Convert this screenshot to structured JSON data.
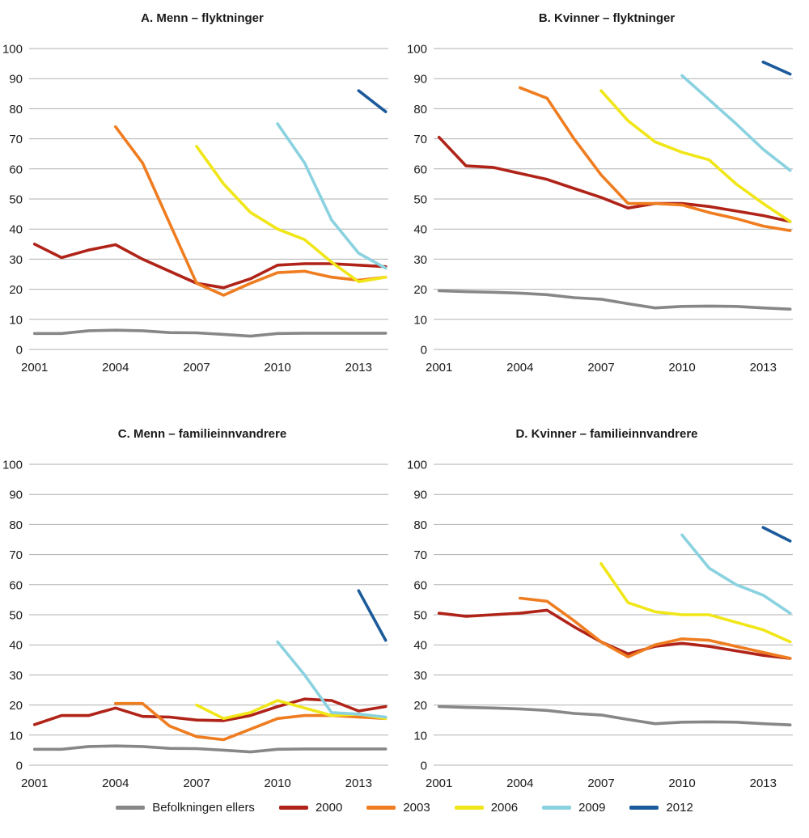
{
  "legend": {
    "items": [
      {
        "label": "Befolkningen ellers",
        "color": "#878787"
      },
      {
        "label": "2000",
        "color": "#b02318"
      },
      {
        "label": "2003",
        "color": "#ef7d20"
      },
      {
        "label": "2006",
        "color": "#f0e618"
      },
      {
        "label": "2009",
        "color": "#8ad2e0"
      },
      {
        "label": "2012",
        "color": "#1b5a9b"
      }
    ]
  },
  "chart_data": [
    {
      "type": "line",
      "title": "A. Menn – flyktninger",
      "xlabel": "",
      "ylabel": "",
      "xlim": [
        2000.8,
        2014.1
      ],
      "ylim": [
        0,
        100
      ],
      "yticks": [
        0,
        10,
        20,
        30,
        40,
        50,
        60,
        70,
        80,
        90,
        100
      ],
      "xticks": [
        2001,
        2004,
        2007,
        2010,
        2013
      ],
      "grid": "horizontal",
      "legend_position": "shared-bottom",
      "series": [
        {
          "name": "Befolkningen ellers",
          "color": "#878787",
          "x": [
            2001,
            2002,
            2003,
            2004,
            2005,
            2006,
            2007,
            2008,
            2009,
            2010,
            2011,
            2012,
            2013,
            2014
          ],
          "y": [
            5.3,
            5.3,
            6.2,
            6.4,
            6.2,
            5.6,
            5.5,
            5.0,
            4.4,
            5.3,
            5.4,
            5.4,
            5.4,
            5.4
          ]
        },
        {
          "name": "2000",
          "color": "#b02318",
          "x": [
            2001,
            2002,
            2003,
            2004,
            2005,
            2006,
            2007,
            2008,
            2009,
            2010,
            2011,
            2012,
            2013,
            2014
          ],
          "y": [
            35,
            30.5,
            33,
            34.8,
            30,
            26,
            22,
            20.5,
            23.5,
            28,
            28.5,
            28.5,
            28,
            27.5
          ]
        },
        {
          "name": "2003",
          "color": "#ef7d20",
          "x": [
            2004,
            2005,
            2006,
            2007,
            2008,
            2009,
            2010,
            2011,
            2012,
            2013,
            2014
          ],
          "y": [
            74,
            62,
            42,
            22,
            18,
            22,
            25.5,
            26,
            24,
            23,
            24
          ]
        },
        {
          "name": "2006",
          "color": "#f0e618",
          "x": [
            2007,
            2008,
            2009,
            2010,
            2011,
            2012,
            2013,
            2014
          ],
          "y": [
            67.5,
            55,
            45.5,
            40,
            36.5,
            29,
            22.5,
            24
          ]
        },
        {
          "name": "2009",
          "color": "#8ad2e0",
          "x": [
            2010,
            2011,
            2012,
            2013,
            2014
          ],
          "y": [
            75,
            62,
            43,
            32,
            27
          ]
        },
        {
          "name": "2012",
          "color": "#1b5a9b",
          "x": [
            2013,
            2014
          ],
          "y": [
            86,
            79
          ]
        }
      ]
    },
    {
      "type": "line",
      "title": "B. Kvinner – flyktninger",
      "xlabel": "",
      "ylabel": "",
      "xlim": [
        2000.8,
        2014.1
      ],
      "ylim": [
        0,
        100
      ],
      "yticks": [
        0,
        10,
        20,
        30,
        40,
        50,
        60,
        70,
        80,
        90,
        100
      ],
      "xticks": [
        2001,
        2004,
        2007,
        2010,
        2013
      ],
      "grid": "horizontal",
      "legend_position": "shared-bottom",
      "series": [
        {
          "name": "Befolkningen ellers",
          "color": "#878787",
          "x": [
            2001,
            2002,
            2003,
            2004,
            2005,
            2006,
            2007,
            2008,
            2009,
            2010,
            2011,
            2012,
            2013,
            2014
          ],
          "y": [
            19.5,
            19.2,
            19.0,
            18.7,
            18.2,
            17.2,
            16.7,
            15.2,
            13.8,
            14.3,
            14.4,
            14.3,
            13.8,
            13.4
          ]
        },
        {
          "name": "2000",
          "color": "#b02318",
          "x": [
            2001,
            2002,
            2003,
            2004,
            2005,
            2006,
            2007,
            2008,
            2009,
            2010,
            2011,
            2012,
            2013,
            2014
          ],
          "y": [
            70.5,
            61,
            60.5,
            58.5,
            56.5,
            53.5,
            50.5,
            47,
            48.5,
            48.5,
            47.5,
            46,
            44.5,
            42.5
          ]
        },
        {
          "name": "2003",
          "color": "#ef7d20",
          "x": [
            2004,
            2005,
            2006,
            2007,
            2008,
            2009,
            2010,
            2011,
            2012,
            2013,
            2014
          ],
          "y": [
            87,
            83.5,
            70,
            58,
            48.5,
            48.5,
            48,
            45.5,
            43.5,
            41,
            39.5
          ]
        },
        {
          "name": "2006",
          "color": "#f0e618",
          "x": [
            2007,
            2008,
            2009,
            2010,
            2011,
            2012,
            2013,
            2014
          ],
          "y": [
            86,
            76,
            69,
            65.5,
            63,
            55,
            48.5,
            42.5
          ]
        },
        {
          "name": "2009",
          "color": "#8ad2e0",
          "x": [
            2010,
            2011,
            2012,
            2013,
            2014
          ],
          "y": [
            91,
            83,
            75,
            66.5,
            59.5
          ]
        },
        {
          "name": "2012",
          "color": "#1b5a9b",
          "x": [
            2013,
            2014
          ],
          "y": [
            95.5,
            91.5
          ]
        }
      ]
    },
    {
      "type": "line",
      "title": "C. Menn – familieinnvandrere",
      "xlabel": "",
      "ylabel": "",
      "xlim": [
        2000.8,
        2014.1
      ],
      "ylim": [
        0,
        100
      ],
      "yticks": [
        0,
        10,
        20,
        30,
        40,
        50,
        60,
        70,
        80,
        90,
        100
      ],
      "xticks": [
        2001,
        2004,
        2007,
        2010,
        2013
      ],
      "grid": "horizontal",
      "legend_position": "shared-bottom",
      "series": [
        {
          "name": "Befolkningen ellers",
          "color": "#878787",
          "x": [
            2001,
            2002,
            2003,
            2004,
            2005,
            2006,
            2007,
            2008,
            2009,
            2010,
            2011,
            2012,
            2013,
            2014
          ],
          "y": [
            5.3,
            5.3,
            6.2,
            6.4,
            6.2,
            5.6,
            5.5,
            5.0,
            4.4,
            5.3,
            5.4,
            5.4,
            5.4,
            5.4
          ]
        },
        {
          "name": "2000",
          "color": "#b02318",
          "x": [
            2001,
            2002,
            2003,
            2004,
            2005,
            2006,
            2007,
            2008,
            2009,
            2010,
            2011,
            2012,
            2013,
            2014
          ],
          "y": [
            13.5,
            16.5,
            16.5,
            19,
            16.2,
            16,
            15,
            14.8,
            16.5,
            19.5,
            22,
            21.5,
            18,
            19.5
          ]
        },
        {
          "name": "2003",
          "color": "#ef7d20",
          "x": [
            2004,
            2005,
            2006,
            2007,
            2008,
            2009,
            2010,
            2011,
            2012,
            2013,
            2014
          ],
          "y": [
            20.5,
            20.5,
            13,
            9.5,
            8.5,
            12,
            15.5,
            16.5,
            16.5,
            16,
            15.5
          ]
        },
        {
          "name": "2006",
          "color": "#f0e618",
          "x": [
            2007,
            2008,
            2009,
            2010,
            2011,
            2012,
            2013,
            2014
          ],
          "y": [
            20,
            15.5,
            17.5,
            21.5,
            19,
            16.5,
            17,
            15.5
          ]
        },
        {
          "name": "2009",
          "color": "#8ad2e0",
          "x": [
            2010,
            2011,
            2012,
            2013,
            2014
          ],
          "y": [
            41,
            30,
            17.5,
            17,
            16
          ]
        },
        {
          "name": "2012",
          "color": "#1b5a9b",
          "x": [
            2013,
            2014
          ],
          "y": [
            58,
            41.5
          ]
        }
      ]
    },
    {
      "type": "line",
      "title": "D. Kvinner – familieinnvandrere",
      "xlabel": "",
      "ylabel": "",
      "xlim": [
        2000.8,
        2014.1
      ],
      "ylim": [
        0,
        100
      ],
      "yticks": [
        0,
        10,
        20,
        30,
        40,
        50,
        60,
        70,
        80,
        90,
        100
      ],
      "xticks": [
        2001,
        2004,
        2007,
        2010,
        2013
      ],
      "grid": "horizontal",
      "legend_position": "shared-bottom",
      "series": [
        {
          "name": "Befolkningen ellers",
          "color": "#878787",
          "x": [
            2001,
            2002,
            2003,
            2004,
            2005,
            2006,
            2007,
            2008,
            2009,
            2010,
            2011,
            2012,
            2013,
            2014
          ],
          "y": [
            19.5,
            19.2,
            19.0,
            18.7,
            18.2,
            17.2,
            16.7,
            15.2,
            13.8,
            14.3,
            14.4,
            14.3,
            13.8,
            13.4
          ]
        },
        {
          "name": "2000",
          "color": "#b02318",
          "x": [
            2001,
            2002,
            2003,
            2004,
            2005,
            2006,
            2007,
            2008,
            2009,
            2010,
            2011,
            2012,
            2013,
            2014
          ],
          "y": [
            50.5,
            49.5,
            50,
            50.5,
            51.5,
            46,
            41,
            37,
            39.5,
            40.5,
            39.5,
            38,
            36.5,
            35.5
          ]
        },
        {
          "name": "2003",
          "color": "#ef7d20",
          "x": [
            2004,
            2005,
            2006,
            2007,
            2008,
            2009,
            2010,
            2011,
            2012,
            2013,
            2014
          ],
          "y": [
            55.5,
            54.5,
            48,
            41,
            36,
            40,
            42,
            41.5,
            39.5,
            37.5,
            35.5
          ]
        },
        {
          "name": "2006",
          "color": "#f0e618",
          "x": [
            2007,
            2008,
            2009,
            2010,
            2011,
            2012,
            2013,
            2014
          ],
          "y": [
            67,
            54,
            51,
            50,
            50,
            47.5,
            45,
            41
          ]
        },
        {
          "name": "2009",
          "color": "#8ad2e0",
          "x": [
            2010,
            2011,
            2012,
            2013,
            2014
          ],
          "y": [
            76.5,
            65.5,
            60,
            56.5,
            50.5
          ]
        },
        {
          "name": "2012",
          "color": "#1b5a9b",
          "x": [
            2013,
            2014
          ],
          "y": [
            79,
            74.5
          ]
        }
      ]
    }
  ]
}
